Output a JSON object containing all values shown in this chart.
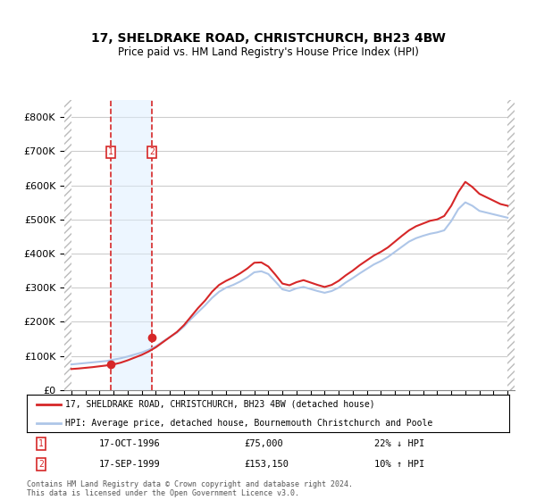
{
  "title": "17, SHELDRAKE ROAD, CHRISTCHURCH, BH23 4BW",
  "subtitle": "Price paid vs. HM Land Registry's House Price Index (HPI)",
  "legend_line1": "17, SHELDRAKE ROAD, CHRISTCHURCH, BH23 4BW (detached house)",
  "legend_line2": "HPI: Average price, detached house, Bournemouth Christchurch and Poole",
  "footnote": "Contains HM Land Registry data © Crown copyright and database right 2024.\nThis data is licensed under the Open Government Licence v3.0.",
  "purchase1_date": "17-OCT-1996",
  "purchase1_price": 75000,
  "purchase1_hpi": "22% ↓ HPI",
  "purchase1_label": "1",
  "purchase2_date": "17-SEP-1999",
  "purchase2_price": 153150,
  "purchase2_hpi": "10% ↑ HPI",
  "purchase2_label": "2",
  "ylim": [
    0,
    850000
  ],
  "yticks": [
    0,
    100000,
    200000,
    300000,
    400000,
    500000,
    600000,
    700000,
    800000
  ],
  "ytick_labels": [
    "£0",
    "£100K",
    "£200K",
    "£300K",
    "£400K",
    "£500K",
    "£600K",
    "£700K",
    "£800K"
  ],
  "hpi_color": "#aec6e8",
  "price_color": "#d62728",
  "hatch_color": "#cccccc",
  "bg_color": "#ffffff",
  "grid_color": "#cccccc",
  "purchase1_x": 1996.79,
  "purchase2_x": 1999.71,
  "hpi_x": [
    1994,
    1994.5,
    1995,
    1995.5,
    1996,
    1996.5,
    1997,
    1997.5,
    1998,
    1998.5,
    1999,
    1999.5,
    2000,
    2000.5,
    2001,
    2001.5,
    2002,
    2002.5,
    2003,
    2003.5,
    2004,
    2004.5,
    2005,
    2005.5,
    2006,
    2006.5,
    2007,
    2007.5,
    2008,
    2008.5,
    2009,
    2009.5,
    2010,
    2010.5,
    2011,
    2011.5,
    2012,
    2012.5,
    2013,
    2013.5,
    2014,
    2014.5,
    2015,
    2015.5,
    2016,
    2016.5,
    2017,
    2017.5,
    2018,
    2018.5,
    2019,
    2019.5,
    2020,
    2020.5,
    2021,
    2021.5,
    2022,
    2022.5,
    2023,
    2023.5,
    2024,
    2024.5,
    2025
  ],
  "hpi_y": [
    75000,
    77000,
    79000,
    81000,
    83000,
    85000,
    89000,
    93000,
    98000,
    104000,
    110000,
    118000,
    128000,
    142000,
    155000,
    168000,
    186000,
    208000,
    228000,
    248000,
    270000,
    288000,
    300000,
    308000,
    318000,
    330000,
    345000,
    348000,
    340000,
    318000,
    295000,
    290000,
    298000,
    302000,
    296000,
    290000,
    285000,
    290000,
    300000,
    315000,
    328000,
    342000,
    355000,
    368000,
    378000,
    390000,
    405000,
    420000,
    435000,
    445000,
    452000,
    458000,
    462000,
    468000,
    495000,
    530000,
    550000,
    540000,
    525000,
    520000,
    515000,
    510000,
    505000
  ],
  "price_x": [
    1994,
    1994.5,
    1995,
    1995.5,
    1996,
    1996.5,
    1997,
    1997.5,
    1998,
    1998.5,
    1999,
    1999.5,
    2000,
    2000.5,
    2001,
    2001.5,
    2002,
    2002.5,
    2003,
    2003.5,
    2004,
    2004.5,
    2005,
    2005.5,
    2006,
    2006.5,
    2007,
    2007.5,
    2008,
    2008.5,
    2009,
    2009.5,
    2010,
    2010.5,
    2011,
    2011.5,
    2012,
    2012.5,
    2013,
    2013.5,
    2014,
    2014.5,
    2015,
    2015.5,
    2016,
    2016.5,
    2017,
    2017.5,
    2018,
    2018.5,
    2019,
    2019.5,
    2020,
    2020.5,
    2021,
    2021.5,
    2022,
    2022.5,
    2023,
    2023.5,
    2024,
    2024.5,
    2025
  ],
  "price_y": [
    61500,
    63000,
    65000,
    67000,
    69500,
    72000,
    75000,
    80000,
    87000,
    95000,
    103000,
    113000,
    125000,
    140000,
    155000,
    170000,
    190000,
    215000,
    240000,
    262000,
    288000,
    308000,
    320000,
    330000,
    342000,
    356000,
    373000,
    374000,
    362000,
    338000,
    312000,
    307000,
    316000,
    322000,
    315000,
    308000,
    302000,
    308000,
    320000,
    336000,
    350000,
    366000,
    380000,
    394000,
    405000,
    418000,
    435000,
    452000,
    468000,
    480000,
    488000,
    496000,
    500000,
    510000,
    540000,
    580000,
    610000,
    595000,
    575000,
    565000,
    555000,
    545000,
    540000
  ],
  "xticks": [
    1994,
    1995,
    1996,
    1997,
    1998,
    1999,
    2000,
    2001,
    2002,
    2003,
    2004,
    2005,
    2006,
    2007,
    2008,
    2009,
    2010,
    2011,
    2012,
    2013,
    2014,
    2015,
    2016,
    2017,
    2018,
    2019,
    2020,
    2021,
    2022,
    2023,
    2024,
    2025
  ],
  "xlim": [
    1993.5,
    2025.5
  ]
}
